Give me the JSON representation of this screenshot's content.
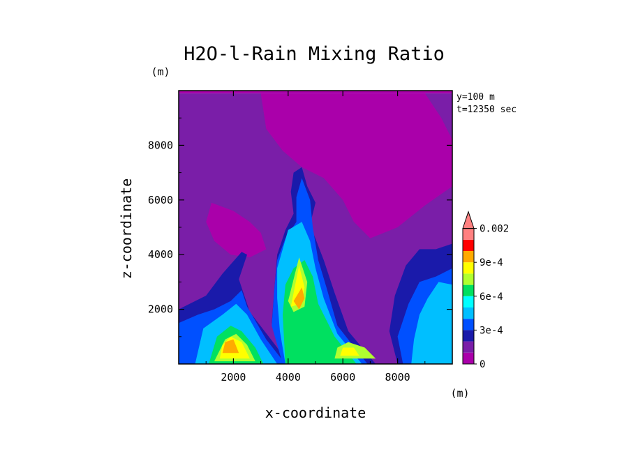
{
  "chart_data": {
    "type": "heatmap",
    "title": "H2O-l-Rain Mixing Ratio",
    "xlabel": "x-coordinate",
    "ylabel": "z-coordinate",
    "x_unit": "(m)",
    "y_unit": "(m)",
    "xlim": [
      0,
      10000
    ],
    "ylim": [
      0,
      10000
    ],
    "x_ticks": [
      2000,
      4000,
      6000,
      8000
    ],
    "y_ticks": [
      2000,
      4000,
      6000,
      8000
    ],
    "x_tick_labels": [
      "2000",
      "4000",
      "6000",
      "8000"
    ],
    "y_tick_labels": [
      "2000",
      "4000",
      "6000",
      "8000"
    ],
    "annotations": [
      "y=100 m",
      "t=12350 sec"
    ],
    "colorbar": {
      "levels": [
        0,
        0.0001,
        0.0002,
        0.0003,
        0.0004,
        0.0005,
        0.0006,
        0.0007,
        0.0008,
        0.0009,
        0.001,
        0.0015,
        0.002
      ],
      "colors": [
        "#aa00aa",
        "#7a1ea8",
        "#1a1aaa",
        "#0050ff",
        "#00bfff",
        "#00ffff",
        "#00e060",
        "#b0ff30",
        "#ffff00",
        "#ffaa00",
        "#ff0000",
        "#ff8080"
      ],
      "labels": [
        {
          "value": 0,
          "text": "0"
        },
        {
          "value": 0.0003,
          "text": "3e-4"
        },
        {
          "value": 0.0006,
          "text": "6e-4"
        },
        {
          "value": 0.0009,
          "text": "9e-4"
        },
        {
          "value": 0.002,
          "text": "0.002"
        }
      ]
    },
    "contour_regions": [
      {
        "level_index": 0,
        "points": [
          [
            0,
            9900
          ],
          [
            10000,
            9900
          ],
          [
            10000,
            10000
          ],
          [
            0,
            10000
          ]
        ]
      },
      {
        "level_index": 1,
        "points": [
          [
            0,
            0
          ],
          [
            10000,
            0
          ],
          [
            10000,
            9900
          ],
          [
            0,
            9900
          ]
        ]
      },
      {
        "level_index": 0,
        "points": [
          [
            3000,
            9900
          ],
          [
            9000,
            9900
          ],
          [
            9600,
            9000
          ],
          [
            10000,
            8200
          ],
          [
            10000,
            6500
          ],
          [
            9000,
            5800
          ],
          [
            8000,
            5000
          ],
          [
            7000,
            4600
          ],
          [
            6400,
            5200
          ],
          [
            6000,
            6000
          ],
          [
            5300,
            6800
          ],
          [
            4500,
            7200
          ],
          [
            3800,
            7800
          ],
          [
            3200,
            8600
          ]
        ]
      },
      {
        "level_index": 0,
        "points": [
          [
            1200,
            5900
          ],
          [
            2000,
            5600
          ],
          [
            2600,
            5200
          ],
          [
            3000,
            4800
          ],
          [
            3200,
            4200
          ],
          [
            2600,
            3900
          ],
          [
            1900,
            4000
          ],
          [
            1300,
            4500
          ],
          [
            1000,
            5200
          ]
        ]
      },
      {
        "level_index": 2,
        "points": [
          [
            0,
            0
          ],
          [
            4000,
            0
          ],
          [
            3600,
            600
          ],
          [
            2600,
            1900
          ],
          [
            2200,
            3100
          ],
          [
            2500,
            4000
          ],
          [
            2300,
            4100
          ],
          [
            1600,
            3300
          ],
          [
            1000,
            2500
          ],
          [
            400,
            2200
          ],
          [
            0,
            2000
          ]
        ]
      },
      {
        "level_index": 2,
        "points": [
          [
            3800,
            0
          ],
          [
            7200,
            0
          ],
          [
            6200,
            1200
          ],
          [
            5700,
            2600
          ],
          [
            5300,
            3800
          ],
          [
            4800,
            5100
          ],
          [
            5000,
            5900
          ],
          [
            4700,
            6500
          ],
          [
            4500,
            7200
          ],
          [
            4200,
            7000
          ],
          [
            4100,
            6300
          ],
          [
            4200,
            5500
          ],
          [
            3900,
            4900
          ],
          [
            3600,
            4000
          ],
          [
            3500,
            2800
          ],
          [
            3400,
            1500
          ]
        ]
      },
      {
        "level_index": 2,
        "points": [
          [
            8000,
            0
          ],
          [
            10000,
            0
          ],
          [
            10000,
            4400
          ],
          [
            9400,
            4200
          ],
          [
            8800,
            4200
          ],
          [
            8300,
            3600
          ],
          [
            7900,
            2500
          ],
          [
            7700,
            1200
          ]
        ]
      },
      {
        "level_index": 3,
        "points": [
          [
            0,
            0
          ],
          [
            3900,
            0
          ],
          [
            3200,
            900
          ],
          [
            2500,
            2100
          ],
          [
            2300,
            2700
          ],
          [
            1900,
            2300
          ],
          [
            1300,
            2000
          ],
          [
            700,
            1800
          ],
          [
            0,
            1500
          ]
        ]
      },
      {
        "level_index": 3,
        "points": [
          [
            3800,
            0
          ],
          [
            6900,
            0
          ],
          [
            5800,
            1400
          ],
          [
            5400,
            2800
          ],
          [
            5100,
            3800
          ],
          [
            4900,
            5000
          ],
          [
            4800,
            6000
          ],
          [
            4500,
            6800
          ],
          [
            4300,
            6100
          ],
          [
            4300,
            5200
          ],
          [
            3900,
            4600
          ],
          [
            3600,
            3800
          ],
          [
            3500,
            2800
          ],
          [
            3400,
            1400
          ]
        ]
      },
      {
        "level_index": 3,
        "points": [
          [
            8200,
            0
          ],
          [
            10000,
            0
          ],
          [
            10000,
            3500
          ],
          [
            9400,
            3200
          ],
          [
            8800,
            3000
          ],
          [
            8400,
            2200
          ],
          [
            8000,
            1000
          ]
        ]
      },
      {
        "level_index": 4,
        "points": [
          [
            600,
            0
          ],
          [
            3600,
            0
          ],
          [
            3000,
            900
          ],
          [
            2500,
            1800
          ],
          [
            2100,
            2200
          ],
          [
            1600,
            1800
          ],
          [
            900,
            1300
          ]
        ]
      },
      {
        "level_index": 4,
        "points": [
          [
            3900,
            0
          ],
          [
            6700,
            0
          ],
          [
            5800,
            1100
          ],
          [
            5300,
            2400
          ],
          [
            5000,
            3500
          ],
          [
            4800,
            4500
          ],
          [
            4500,
            5200
          ],
          [
            4000,
            4900
          ],
          [
            3800,
            4200
          ],
          [
            3600,
            3500
          ],
          [
            3600,
            2400
          ],
          [
            3700,
            1200
          ]
        ]
      },
      {
        "level_index": 4,
        "points": [
          [
            8500,
            0
          ],
          [
            10000,
            0
          ],
          [
            10000,
            2900
          ],
          [
            9500,
            3000
          ],
          [
            9100,
            2400
          ],
          [
            8800,
            1800
          ],
          [
            8600,
            900
          ]
        ]
      },
      {
        "level_index": 6,
        "points": [
          [
            1100,
            0
          ],
          [
            3100,
            0
          ],
          [
            2800,
            600
          ],
          [
            2300,
            1200
          ],
          [
            1900,
            1400
          ],
          [
            1400,
            1000
          ]
        ]
      },
      {
        "level_index": 6,
        "points": [
          [
            3900,
            0
          ],
          [
            6500,
            0
          ],
          [
            5700,
            1000
          ],
          [
            5100,
            2200
          ],
          [
            4900,
            3200
          ],
          [
            4600,
            3800
          ],
          [
            4200,
            3500
          ],
          [
            3900,
            2900
          ],
          [
            3800,
            1800
          ]
        ]
      },
      {
        "level_index": 7,
        "points": [
          [
            1300,
            100
          ],
          [
            2800,
            100
          ],
          [
            2500,
            700
          ],
          [
            2100,
            1100
          ],
          [
            1700,
            900
          ]
        ]
      },
      {
        "level_index": 7,
        "points": [
          [
            4000,
            2300
          ],
          [
            4400,
            3900
          ],
          [
            4700,
            3000
          ],
          [
            4600,
            2100
          ],
          [
            4200,
            1900
          ]
        ]
      },
      {
        "level_index": 7,
        "points": [
          [
            5700,
            200
          ],
          [
            7200,
            200
          ],
          [
            6800,
            600
          ],
          [
            6200,
            800
          ],
          [
            5800,
            600
          ]
        ]
      },
      {
        "level_index": 8,
        "points": [
          [
            1500,
            200
          ],
          [
            2600,
            200
          ],
          [
            2300,
            800
          ],
          [
            1900,
            1000
          ],
          [
            1600,
            700
          ]
        ]
      },
      {
        "level_index": 8,
        "points": [
          [
            4100,
            2100
          ],
          [
            4400,
            3600
          ],
          [
            4600,
            2800
          ],
          [
            4500,
            2200
          ]
        ]
      },
      {
        "level_index": 8,
        "points": [
          [
            5900,
            300
          ],
          [
            6600,
            300
          ],
          [
            6400,
            600
          ],
          [
            6000,
            600
          ]
        ]
      },
      {
        "level_index": 9,
        "points": [
          [
            1600,
            400
          ],
          [
            2200,
            400
          ],
          [
            2000,
            900
          ],
          [
            1700,
            800
          ]
        ]
      },
      {
        "level_index": 9,
        "points": [
          [
            4200,
            2300
          ],
          [
            4500,
            2800
          ],
          [
            4600,
            2400
          ],
          [
            4400,
            2000
          ]
        ]
      }
    ]
  }
}
